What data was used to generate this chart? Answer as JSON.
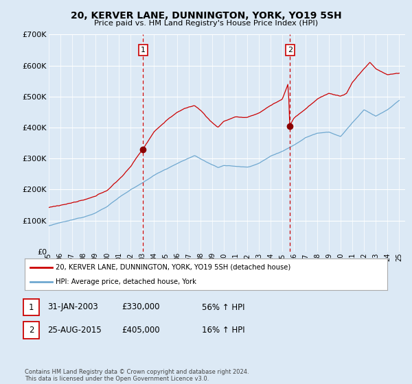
{
  "title": "20, KERVER LANE, DUNNINGTON, YORK, YO19 5SH",
  "subtitle": "Price paid vs. HM Land Registry's House Price Index (HPI)",
  "background_color": "#dce9f5",
  "plot_bg_color": "#dce9f5",
  "ylim": [
    0,
    700000
  ],
  "yticks": [
    0,
    100000,
    200000,
    300000,
    400000,
    500000,
    600000,
    700000
  ],
  "ytick_labels": [
    "£0",
    "£100K",
    "£200K",
    "£300K",
    "£400K",
    "£500K",
    "£600K",
    "£700K"
  ],
  "sale1_date": "31-JAN-2003",
  "sale1_price": 330000,
  "sale1_pct": "56%",
  "sale1_x": 2003.08,
  "sale2_date": "25-AUG-2015",
  "sale2_price": 405000,
  "sale2_x": 2015.65,
  "sale2_pct": "16%",
  "vline_color": "#cc0000",
  "legend_label1": "20, KERVER LANE, DUNNINGTON, YORK, YO19 5SH (detached house)",
  "legend_label2": "HPI: Average price, detached house, York",
  "footer": "Contains HM Land Registry data © Crown copyright and database right 2024.\nThis data is licensed under the Open Government Licence v3.0.",
  "price_line_color": "#cc0000",
  "hpi_line_color": "#6fa8d0",
  "dot_color": "#8b0000"
}
